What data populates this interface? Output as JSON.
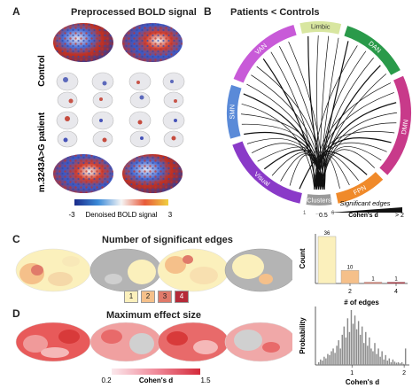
{
  "panels": {
    "A": {
      "letter": "A",
      "title": "Preprocessed BOLD signal",
      "rows": [
        "Control",
        "m.3243A>G patient"
      ],
      "colorbar": {
        "label": "Denoised BOLD signal",
        "min": "-3",
        "max": "3"
      }
    },
    "B": {
      "letter": "B",
      "title": "Patients < Controls",
      "networks": [
        "Limbic",
        "DAN",
        "DMN",
        "FPN",
        "Clusters",
        "Visual",
        "SMN",
        "VAN"
      ],
      "colors": {
        "Limbic": "#d8e6a0",
        "DAN": "#2a9a4a",
        "DMN": "#c83a8a",
        "FPN": "#f08a2a",
        "Clusters": "#9a9a9a",
        "Visual": "#8a3ac8",
        "SMN": "#5a8ad8",
        "VAN": "#c85ad8"
      },
      "cluster_ends": [
        "1",
        "6"
      ],
      "cluster_dots": "....",
      "legend": {
        "title": "Significant edges",
        "min": "0.5",
        "label": "Cohen's d",
        "max": "> 2"
      }
    },
    "C": {
      "letter": "C",
      "title": "Number of significant edges",
      "legend_labels": [
        "1",
        "2",
        "3",
        "4"
      ],
      "legend_colors": [
        "#fbf0bc",
        "#f5c08a",
        "#e07a6a",
        "#b52a38"
      ],
      "chart_data": {
        "type": "bar",
        "categories": [
          "1",
          "2",
          "3",
          "4"
        ],
        "values": [
          36,
          10,
          1,
          1
        ],
        "xlabel": "# of edges",
        "ylabel": "Count",
        "xticks": [
          "2",
          "4"
        ],
        "data_labels": [
          "36",
          "10",
          "1",
          "1"
        ],
        "colors": [
          "#fbf0bc",
          "#f5c08a",
          "#e07a6a",
          "#b52a38"
        ],
        "ylim": [
          0,
          38
        ]
      }
    },
    "D": {
      "letter": "D",
      "title": "Maximum effect size",
      "colorbar": {
        "label": "Cohen's d",
        "min": "0.2",
        "max": "1.5"
      },
      "chart_data": {
        "type": "bar",
        "xlabel": "Cohen's d",
        "ylabel": "Probability",
        "xticks": [
          "1",
          "2"
        ],
        "xlim": [
          0.3,
          2.1
        ],
        "heights": [
          0.05,
          0.1,
          0.08,
          0.15,
          0.12,
          0.2,
          0.18,
          0.25,
          0.3,
          0.22,
          0.35,
          0.45,
          0.3,
          0.55,
          0.7,
          0.5,
          0.85,
          0.6,
          1.0,
          0.75,
          0.9,
          0.65,
          0.8,
          0.55,
          0.7,
          0.4,
          0.6,
          0.35,
          0.5,
          0.3,
          0.25,
          0.4,
          0.2,
          0.3,
          0.15,
          0.25,
          0.1,
          0.18,
          0.08,
          0.12,
          0.05,
          0.1,
          0.06,
          0.04,
          0.05,
          0.03,
          0.05,
          0.02,
          0.3
        ],
        "bar_color": "#8a8a8a"
      }
    }
  }
}
